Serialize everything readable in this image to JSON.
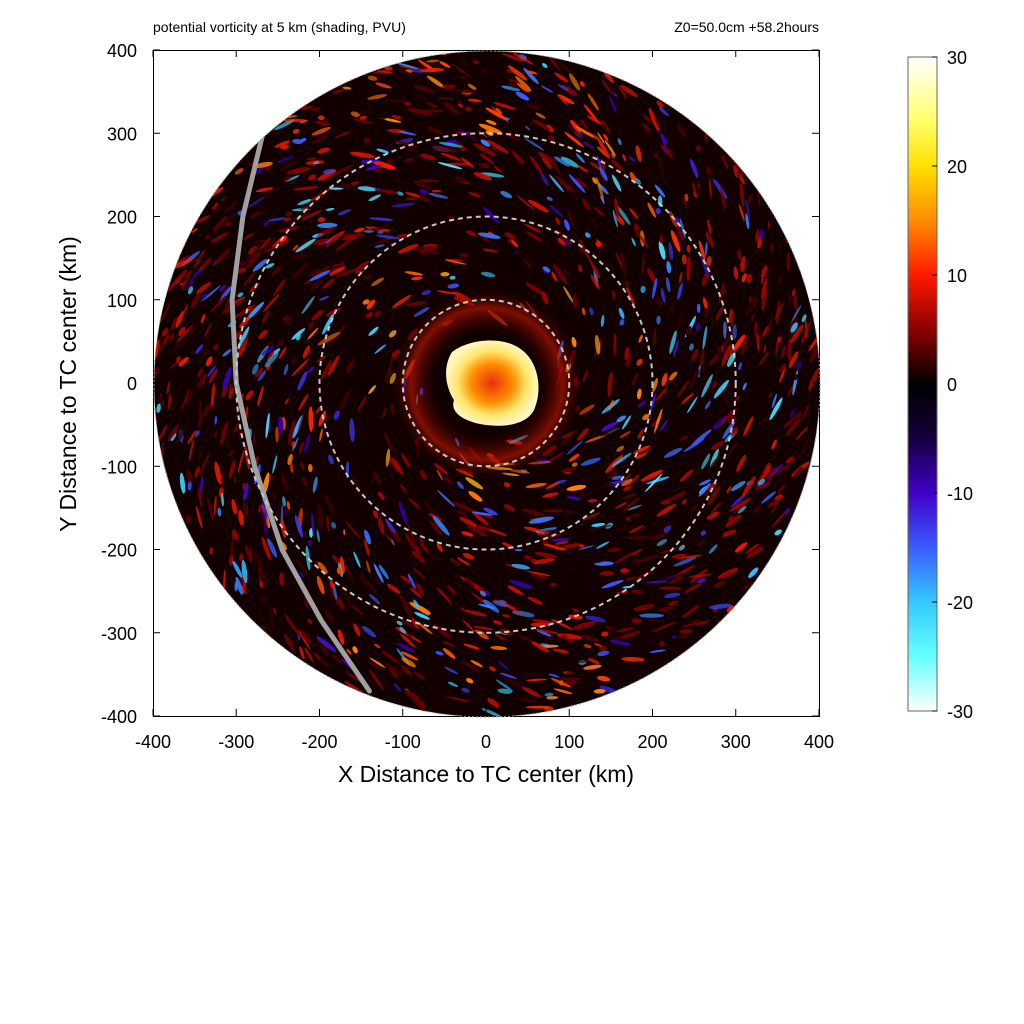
{
  "chart_data": {
    "type": "heatmap",
    "title_left": "potential vorticity at 5 km (shading, PVU)",
    "title_right": "Z0=50.0cm  +58.2hours",
    "xlabel": "X Distance to TC center (km)",
    "ylabel": "Y Distance to TC center (km)",
    "xlim": [
      -400,
      400
    ],
    "ylim": [
      -400,
      400
    ],
    "xticks": [
      -400,
      -300,
      -200,
      -100,
      0,
      100,
      200,
      300,
      400
    ],
    "yticks": [
      400,
      300,
      200,
      100,
      0,
      -100,
      -200,
      -300,
      -400
    ],
    "domain_radius_km": 400,
    "range_rings_km": [
      100,
      200,
      300
    ],
    "colorbar": {
      "min": -30,
      "max": 30,
      "ticks": [
        30,
        20,
        10,
        0,
        -10,
        -20,
        -30
      ],
      "colormap": [
        {
          "value": 30,
          "color": "#ffffff"
        },
        {
          "value": 24,
          "color": "#ffff66"
        },
        {
          "value": 20,
          "color": "#ffe000"
        },
        {
          "value": 15,
          "color": "#ff8c00"
        },
        {
          "value": 10,
          "color": "#ff1a00"
        },
        {
          "value": 5,
          "color": "#8b0000"
        },
        {
          "value": 0,
          "color": "#000000"
        },
        {
          "value": -5,
          "color": "#15003d"
        },
        {
          "value": -10,
          "color": "#3f00c8"
        },
        {
          "value": -15,
          "color": "#3a5cff"
        },
        {
          "value": -20,
          "color": "#33c8ff"
        },
        {
          "value": -25,
          "color": "#66ffff"
        },
        {
          "value": -30,
          "color": "#ffffff"
        }
      ]
    },
    "track_line_km": [
      [
        -268,
        300
      ],
      [
        -292,
        200
      ],
      [
        -305,
        100
      ],
      [
        -300,
        0
      ],
      [
        -278,
        -100
      ],
      [
        -245,
        -200
      ],
      [
        -198,
        -285
      ],
      [
        -140,
        -370
      ]
    ],
    "track_line_color": "#a0a0a0",
    "ring_color": "#c8c8c8",
    "grid": false
  }
}
